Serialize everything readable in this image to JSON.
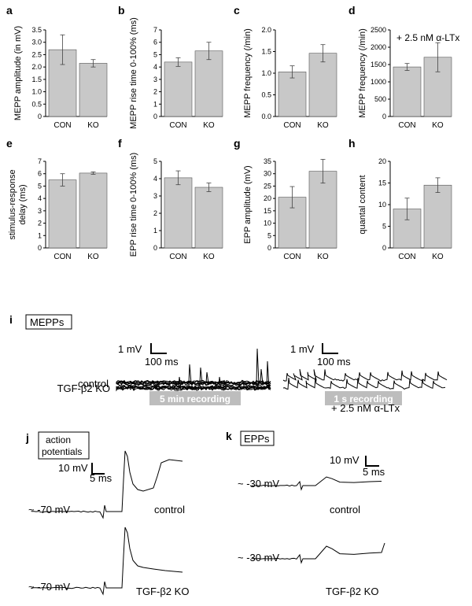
{
  "chart_data": [
    {
      "panel": "a",
      "type": "bar",
      "categories": [
        "CON",
        "KO"
      ],
      "values": [
        2.7,
        2.15
      ],
      "errors": [
        0.6,
        0.15
      ],
      "ylabel": "MEPP amplitude (in mV)",
      "ylim": [
        0,
        3.5
      ],
      "yticks": [
        "0",
        "0.5",
        "1.0",
        "1.5",
        "2.0",
        "2.5",
        "3.0",
        "3.5"
      ]
    },
    {
      "panel": "b",
      "type": "bar",
      "categories": [
        "CON",
        "KO"
      ],
      "values": [
        4.4,
        5.3
      ],
      "errors": [
        0.35,
        0.7
      ],
      "ylabel": "MEPP rise time 0-100% (ms)",
      "ylim": [
        0,
        7
      ],
      "yticks": [
        "0",
        "1",
        "2",
        "3",
        "4",
        "5",
        "6",
        "7"
      ]
    },
    {
      "panel": "c",
      "type": "bar",
      "categories": [
        "CON",
        "KO"
      ],
      "values": [
        1.03,
        1.46
      ],
      "errors": [
        0.14,
        0.2
      ],
      "ylabel": "MEPP frequency (/min)",
      "ylim": [
        0,
        2
      ],
      "yticks": [
        "0.0",
        "0.5",
        "1.0",
        "1.5",
        "2.0"
      ]
    },
    {
      "panel": "d",
      "type": "bar",
      "categories": [
        "CON",
        "KO"
      ],
      "values": [
        1430,
        1710
      ],
      "errors": [
        100,
        420
      ],
      "ylabel": "MEPP frequency (/min)",
      "annotation": "+ 2.5 nM α-LTx",
      "ylim": [
        0,
        2500
      ],
      "yticks": [
        "0",
        "500",
        "1000",
        "1500",
        "2000",
        "2500"
      ]
    },
    {
      "panel": "e",
      "type": "bar",
      "categories": [
        "CON",
        "KO"
      ],
      "values": [
        5.5,
        6.05
      ],
      "errors": [
        0.5,
        0.1
      ],
      "ylabel": "stimulus-response delay (ms)",
      "ylim": [
        0,
        7
      ],
      "yticks": [
        "0",
        "1",
        "2",
        "3",
        "4",
        "5",
        "6",
        "7"
      ]
    },
    {
      "panel": "f",
      "type": "bar",
      "categories": [
        "CON",
        "KO"
      ],
      "values": [
        4.05,
        3.5
      ],
      "errors": [
        0.4,
        0.25
      ],
      "ylabel": "EPP rise time 0-100% (ms)",
      "ylim": [
        0,
        5
      ],
      "yticks": [
        "0",
        "1",
        "2",
        "3",
        "4",
        "5"
      ]
    },
    {
      "panel": "g",
      "type": "bar",
      "categories": [
        "CON",
        "KO"
      ],
      "values": [
        20.5,
        31
      ],
      "errors": [
        4.3,
        4.8
      ],
      "ylabel": "EPP amplitude (mV)",
      "ylim": [
        0,
        35
      ],
      "yticks": [
        "0",
        "5",
        "10",
        "15",
        "20",
        "25",
        "30",
        "35"
      ]
    },
    {
      "panel": "h",
      "type": "bar",
      "categories": [
        "CON",
        "KO"
      ],
      "values": [
        9,
        14.5
      ],
      "errors": [
        2.5,
        1.7
      ],
      "ylabel": "quantal content",
      "ylim": [
        0,
        20
      ],
      "yticks": [
        "0",
        "5",
        "10",
        "15",
        "20"
      ]
    }
  ],
  "traces": {
    "i": {
      "label": "i",
      "box": "MEPPs",
      "row1": "control",
      "row2": "TGF-β2 KO",
      "scale_left_v": "1 mV",
      "scale_left_t": "100 ms",
      "scale_right_v": "1 mV",
      "scale_right_t": "100 ms",
      "badge_left": "5 min recording",
      "badge_right": "1 s recording",
      "note": "+ 2.5 nM α-LTx"
    },
    "j": {
      "label": "j",
      "box_line1": "action",
      "box_line2": "potentials",
      "scale_v": "10 mV",
      "scale_t": "5 ms",
      "baseline1": "~ -70 mV",
      "baseline2": "~ -70 mV",
      "row1": "control",
      "row2": "TGF-β2 KO"
    },
    "k": {
      "label": "k",
      "box": "EPPs",
      "scale_v": "10 mV",
      "scale_t": "5 ms",
      "baseline1": "~ -30 mV",
      "baseline2": "~ -30 mV",
      "row1": "control",
      "row2": "TGF-β2 KO"
    }
  },
  "colors": {
    "bar": "#c8c8c8",
    "badge": "#bdbdbd",
    "trace": "#000000"
  }
}
